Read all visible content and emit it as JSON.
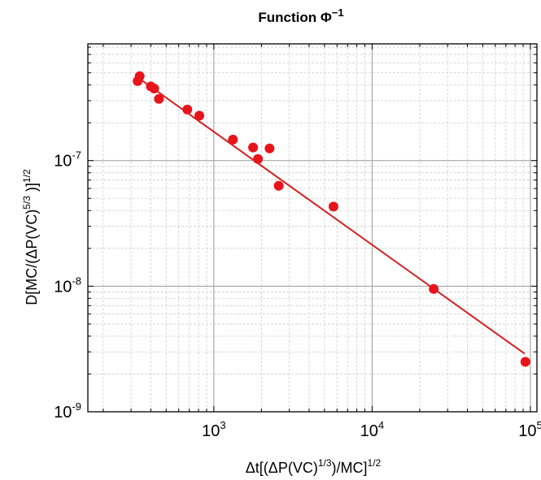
{
  "chart_data": {
    "type": "scatter",
    "title": "Function Φ",
    "title_sup": "−1",
    "xscale": "log",
    "yscale": "log",
    "xlim": [
      160,
      110000
    ],
    "ylim": [
      1e-09,
      8.5e-07
    ],
    "grid": true,
    "minor_grid": true,
    "colors": {
      "points": "#e8141b",
      "fit_line": "#d42020",
      "major_grid": "#9a9a9a",
      "minor_grid": "#cfcfcf",
      "axes": "#000000"
    },
    "xlabel": {
      "pre": "Δt[(ΔP(VC)",
      "sup1": "1/3",
      "mid": ")/MC]",
      "sup2": "1/2"
    },
    "ylabel": {
      "pre": "D[MC/(ΔP(VC)",
      "sup1": "5/3",
      "mid": " )]",
      "sup2": "1/2"
    },
    "x_ticks": [
      {
        "value": 1000,
        "base": "10",
        "exp": "3"
      },
      {
        "value": 10000,
        "base": "10",
        "exp": "4"
      },
      {
        "value": 100000,
        "base": "10",
        "exp": "5"
      }
    ],
    "y_ticks": [
      {
        "value": 1e-09,
        "base": "10",
        "exp": "-9"
      },
      {
        "value": 1e-08,
        "base": "10",
        "exp": "-8"
      },
      {
        "value": 1e-07,
        "base": "10",
        "exp": "-7"
      }
    ],
    "points": [
      {
        "x": 330,
        "y": 4.3e-07
      },
      {
        "x": 340,
        "y": 4.7e-07
      },
      {
        "x": 400,
        "y": 3.9e-07
      },
      {
        "x": 420,
        "y": 3.75e-07
      },
      {
        "x": 450,
        "y": 3.1e-07
      },
      {
        "x": 680,
        "y": 2.55e-07
      },
      {
        "x": 810,
        "y": 2.28e-07
      },
      {
        "x": 1320,
        "y": 1.47e-07
      },
      {
        "x": 1770,
        "y": 1.27e-07
      },
      {
        "x": 1900,
        "y": 1.03e-07
      },
      {
        "x": 2250,
        "y": 1.25e-07
      },
      {
        "x": 2570,
        "y": 6.3e-08
      },
      {
        "x": 5700,
        "y": 4.3e-08
      },
      {
        "x": 24500,
        "y": 9.5e-09
      },
      {
        "x": 93000,
        "y": 2.5e-09
      }
    ],
    "fit_line": [
      {
        "x": 330,
        "y": 4.6e-07
      },
      {
        "x": 92000,
        "y": 2.9e-09
      }
    ]
  }
}
